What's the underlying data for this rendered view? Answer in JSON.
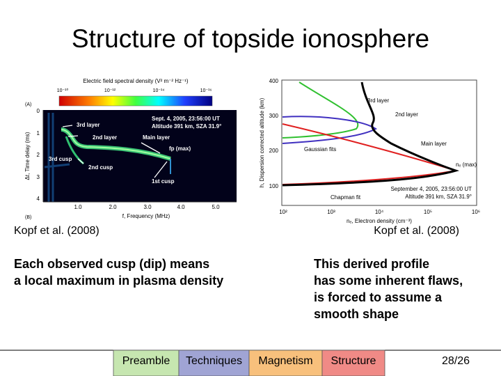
{
  "title": "Structure of topside ionosphere",
  "left_figure": {
    "colorbar_label": "Electric field spectral density (V² m⁻² Hz⁻¹)",
    "colorbar_ticks": [
      "10⁻¹⁰",
      "10⁻¹²",
      "10⁻¹⁴",
      "10⁻¹⁶"
    ],
    "panel_a": "(A)",
    "panel_b": "(B)",
    "y_label": "Δt, Time delay (ms)",
    "y_ticks": [
      "0",
      "1",
      "2",
      "3",
      "4"
    ],
    "x_label": "f, Frequency (MHz)",
    "x_ticks": [
      "1.0",
      "2.0",
      "3.0",
      "4.0",
      "5.0"
    ],
    "date": "Sept. 4, 2005, 23:56:00 UT",
    "altitude": "Altitude 391 km, SZA 31.9°",
    "annotations": [
      "3rd layer",
      "2nd layer",
      "Main layer",
      "fp (max)",
      "3rd cusp",
      "2nd cusp",
      "1st cusp"
    ],
    "caption": "Kopf et al. (2008)"
  },
  "right_figure": {
    "y_label": "h, Dispersion corrected altitude (km)",
    "y_ticks": [
      "400",
      "300",
      "200",
      "100"
    ],
    "x_label": "nₑ, Electron density (cm⁻³)",
    "x_ticks": [
      "10²",
      "10³",
      "10⁴",
      "10⁵",
      "10⁶"
    ],
    "annotations": [
      "3rd layer",
      "2nd layer",
      "Gaussian fits",
      "Main layer",
      "nₑ (max)",
      "Chapman fit"
    ],
    "date": "September 4, 2005, 23:56:00 UT",
    "altitude": "Altitude 391 km, SZA 31.9°",
    "caption": "Kopf et al. (2008)"
  },
  "left_text": [
    "Each observed cusp (dip) means",
    "a local maximum in plasma density"
  ],
  "right_text": [
    "This derived profile",
    "has some inherent flaws,",
    "is forced to assume a",
    "smooth shape"
  ],
  "nav": [
    "Preamble",
    "Techniques",
    "Magnetism",
    "Structure"
  ],
  "page_number": "28/26"
}
